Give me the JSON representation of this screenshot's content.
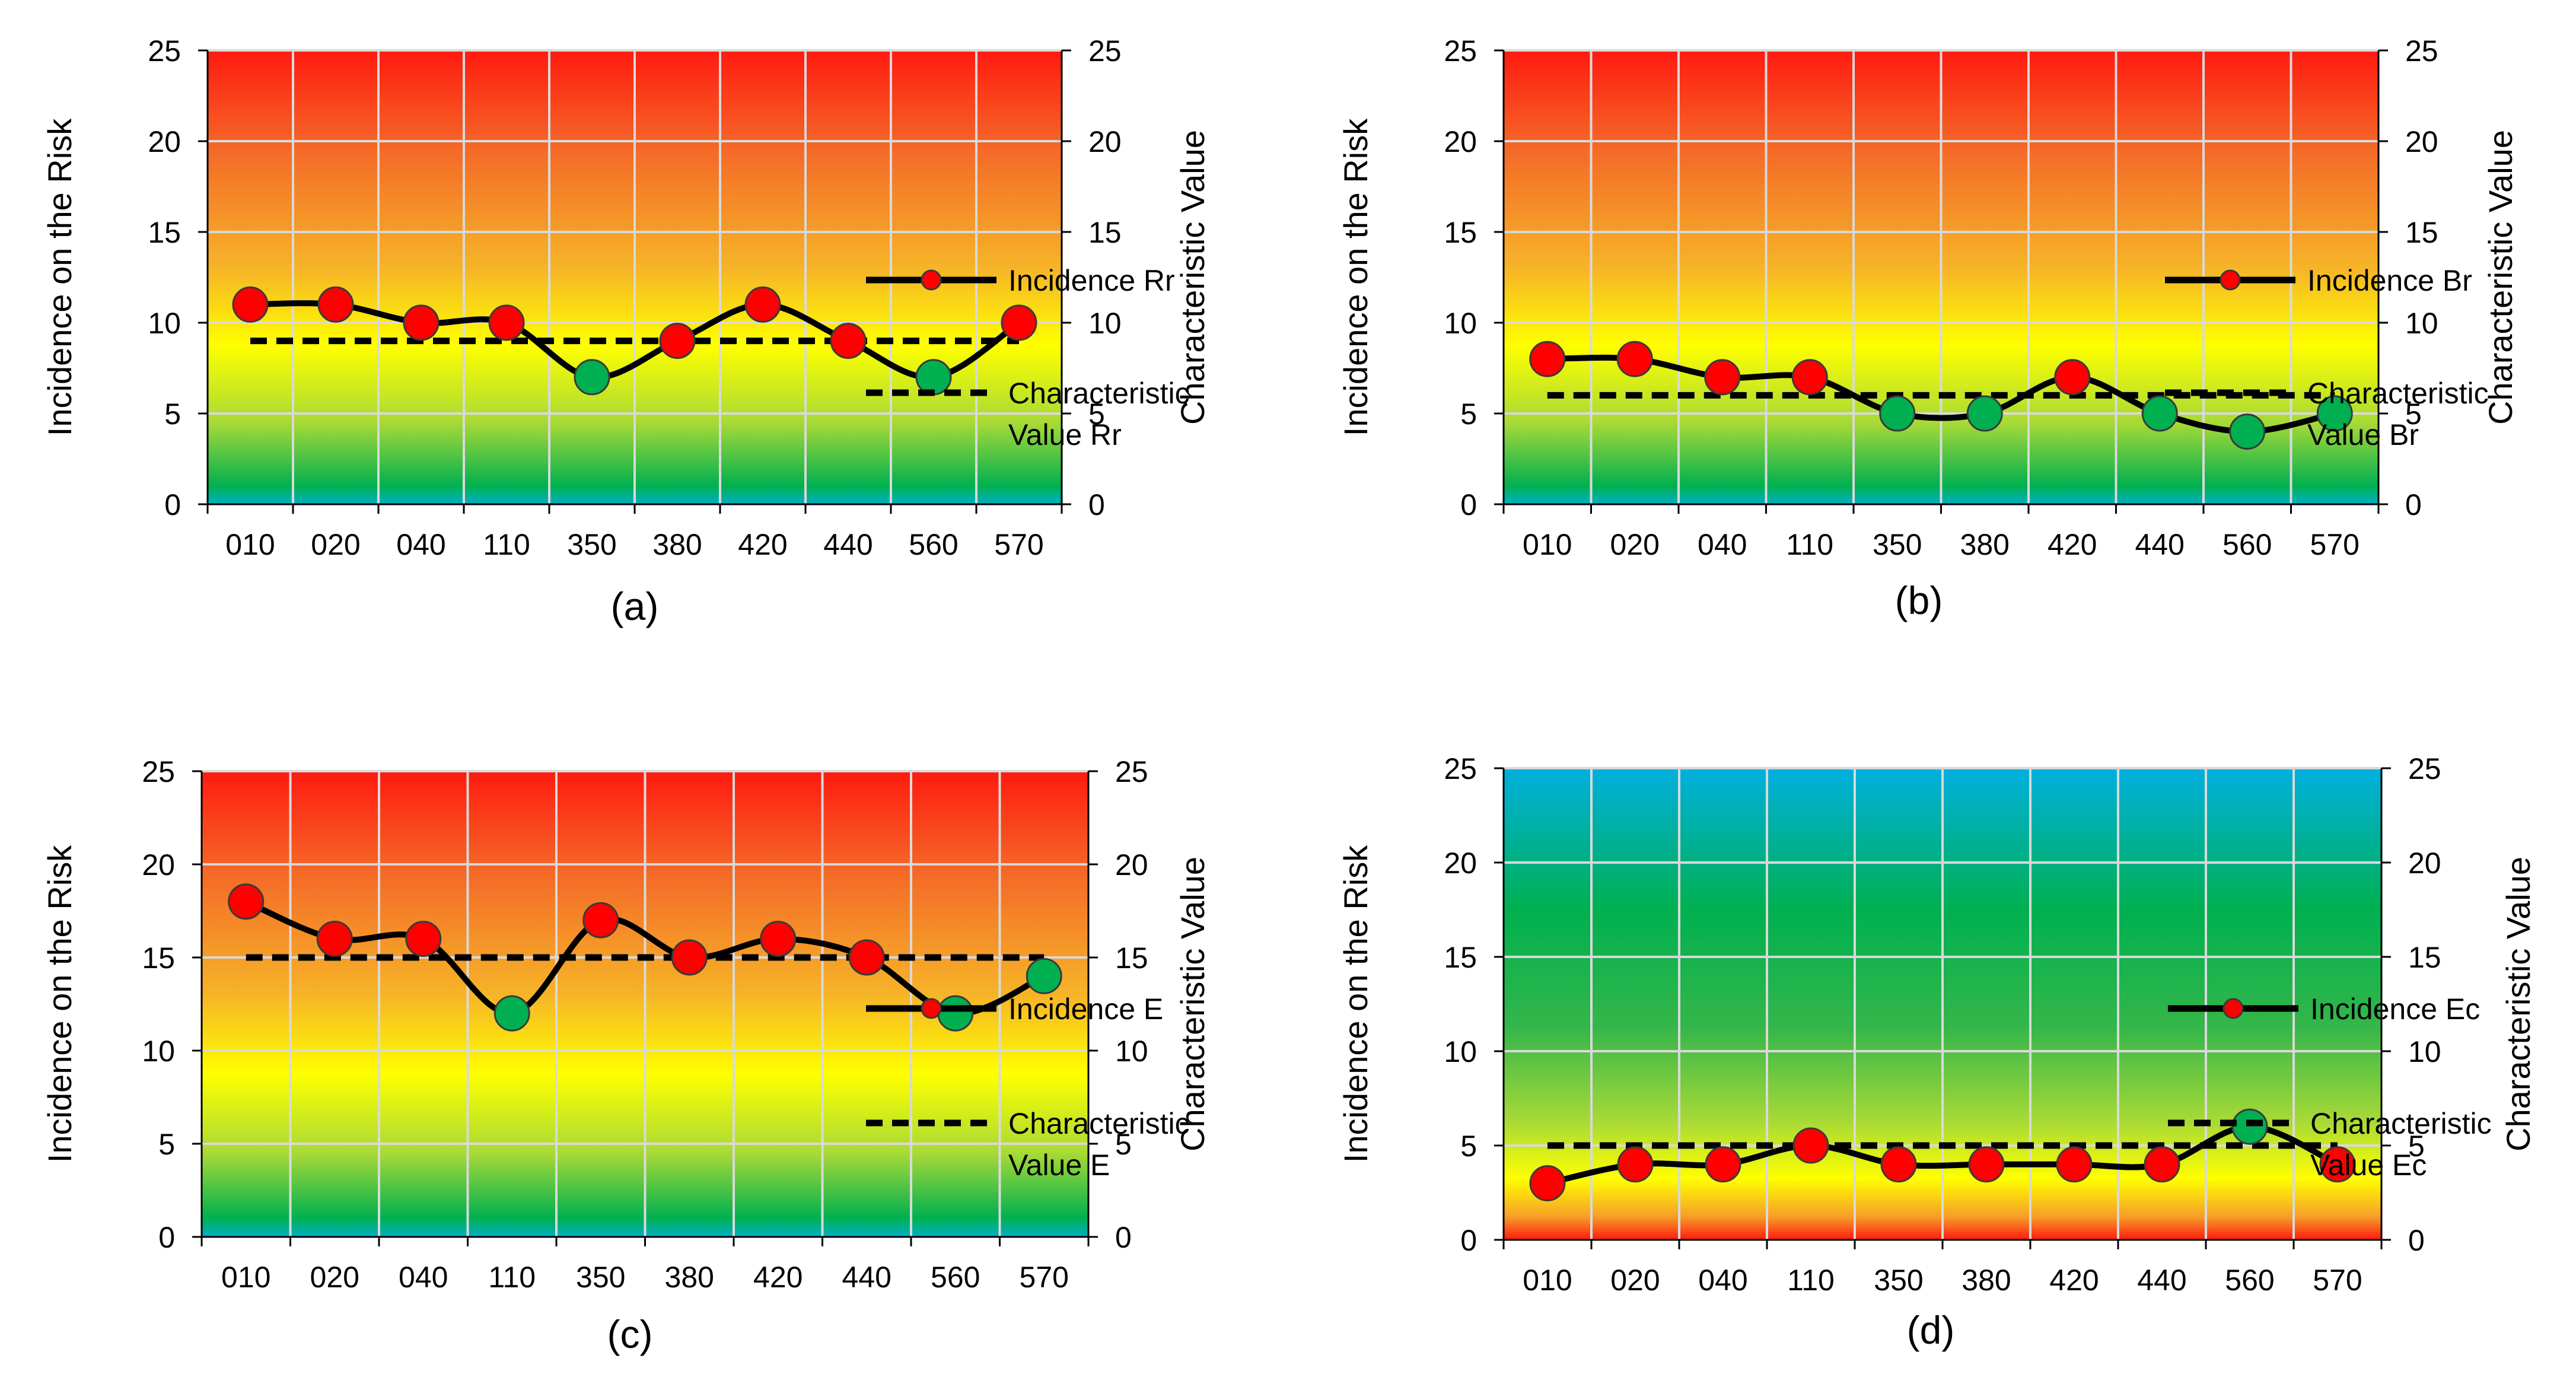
{
  "chart_data": [
    {
      "type": "line",
      "label": "(a)",
      "categories": [
        "010",
        "020",
        "040",
        "110",
        "350",
        "380",
        "420",
        "440",
        "560",
        "570"
      ],
      "series": [
        {
          "name": "Incidence Rr",
          "values": [
            11,
            11,
            10,
            10,
            7,
            9,
            11,
            9,
            7,
            10
          ],
          "point_colors": [
            "red",
            "red",
            "red",
            "red",
            "green",
            "red",
            "red",
            "red",
            "green",
            "red"
          ]
        },
        {
          "name": "Characteristic Value Rr",
          "values": [
            9,
            9,
            9,
            9,
            9,
            9,
            9,
            9,
            9,
            9
          ],
          "style": "dashed"
        }
      ],
      "legend": [
        "Incidence Rr",
        "Characteristic",
        "Value Rr"
      ],
      "ylabel": "Incidence on the Risk",
      "y2label": "Characteristic Value",
      "ylim": [
        0,
        25
      ],
      "yticks": [
        "0",
        "5",
        "10",
        "15",
        "20",
        "25"
      ],
      "gradient": "red-top",
      "grid": true
    },
    {
      "type": "line",
      "label": "(b)",
      "categories": [
        "010",
        "020",
        "040",
        "110",
        "350",
        "380",
        "420",
        "440",
        "560",
        "570"
      ],
      "series": [
        {
          "name": "Incidence Br",
          "values": [
            8,
            8,
            7,
            7,
            5,
            5,
            7,
            5,
            4,
            5
          ],
          "point_colors": [
            "red",
            "red",
            "red",
            "red",
            "green",
            "green",
            "red",
            "green",
            "green",
            "green"
          ]
        },
        {
          "name": "Characteristic Value Br",
          "values": [
            6,
            6,
            6,
            6,
            6,
            6,
            6,
            6,
            6,
            6
          ],
          "style": "dashed"
        }
      ],
      "legend": [
        "Incidence Br",
        "Characteristic",
        "Value Br"
      ],
      "ylabel": "Incidence on the Risk",
      "y2label": "Characteristic Value",
      "ylim": [
        0,
        25
      ],
      "yticks": [
        "0",
        "5",
        "10",
        "15",
        "20",
        "25"
      ],
      "gradient": "red-top",
      "grid": true
    },
    {
      "type": "line",
      "label": "(c)",
      "categories": [
        "010",
        "020",
        "040",
        "110",
        "350",
        "380",
        "420",
        "440",
        "560",
        "570"
      ],
      "series": [
        {
          "name": "Incidence E",
          "values": [
            18,
            16,
            16,
            12,
            17,
            15,
            16,
            15,
            12,
            14
          ],
          "point_colors": [
            "red",
            "red",
            "red",
            "green",
            "red",
            "red",
            "red",
            "red",
            "green",
            "green"
          ]
        },
        {
          "name": "Characteristic Value E",
          "values": [
            15,
            15,
            15,
            15,
            15,
            15,
            15,
            15,
            15,
            15
          ],
          "style": "dashed"
        }
      ],
      "legend": [
        "Incidence E",
        "Characteristic",
        "Value E"
      ],
      "ylabel": "Incidence on the Risk",
      "y2label": "Characteristic Value",
      "ylim": [
        0,
        25
      ],
      "yticks": [
        "0",
        "5",
        "10",
        "15",
        "20",
        "25"
      ],
      "gradient": "red-top",
      "grid": true
    },
    {
      "type": "line",
      "label": "(d)",
      "categories": [
        "010",
        "020",
        "040",
        "110",
        "350",
        "380",
        "420",
        "440",
        "560",
        "570"
      ],
      "series": [
        {
          "name": "Incidence Ec",
          "values": [
            3,
            4,
            4,
            5,
            4,
            4,
            4,
            4,
            6,
            4
          ],
          "point_colors": [
            "red",
            "red",
            "red",
            "red",
            "red",
            "red",
            "red",
            "red",
            "green",
            "red"
          ]
        },
        {
          "name": "Characteristic Value Ec",
          "values": [
            5,
            5,
            5,
            5,
            5,
            5,
            5,
            5,
            5,
            5
          ],
          "style": "dashed"
        }
      ],
      "legend": [
        "Incidence Ec",
        "Characteristic",
        "Value Ec"
      ],
      "ylabel": "Incidence on the Risk",
      "y2label": "Characteristic Value",
      "ylim": [
        0,
        25
      ],
      "yticks": [
        "0",
        "5",
        "10",
        "15",
        "20",
        "25"
      ],
      "gradient": "red-bottom",
      "grid": true
    }
  ],
  "colors": {
    "red_marker": "#ff0000",
    "green_marker": "#00b050",
    "line": "#000000",
    "grid": "#d9d9d9"
  }
}
